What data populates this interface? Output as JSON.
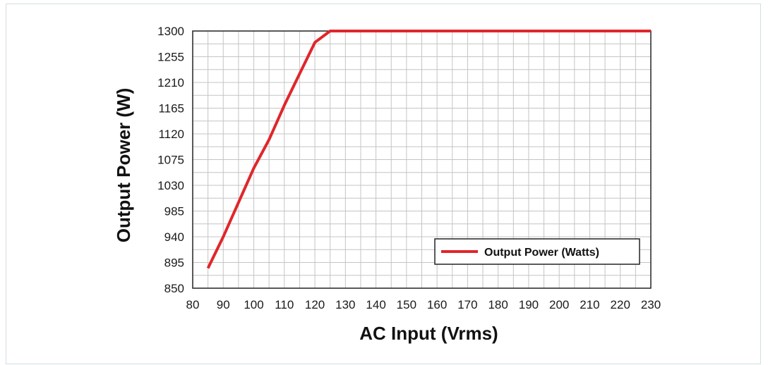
{
  "chart_data": {
    "type": "line",
    "title": "",
    "xlabel": "AC Input (Vrms)",
    "ylabel": "Output Power (W)",
    "xlim": [
      80,
      230
    ],
    "ylim": [
      850,
      1300
    ],
    "x_ticks": [
      80,
      90,
      100,
      110,
      120,
      130,
      140,
      150,
      160,
      170,
      180,
      190,
      200,
      210,
      220,
      230
    ],
    "x_tick_labels": [
      "80",
      "90",
      "100",
      "110",
      "120",
      "130",
      "140",
      "150",
      "160",
      "170",
      "180",
      "190",
      "200",
      "210",
      "220",
      "230"
    ],
    "y_ticks": [
      850,
      895,
      940,
      985,
      1030,
      1075,
      1120,
      1165,
      1210,
      1255,
      1300
    ],
    "y_tick_labels": [
      "850",
      "895",
      "940",
      "985",
      "1030",
      "1075",
      "1120",
      "1165",
      "1210",
      "1255",
      "1300"
    ],
    "grid": true,
    "legend_position": "bottom-right",
    "series": [
      {
        "name": "Output Power (Watts)",
        "color": "#e0262b",
        "x": [
          85,
          90,
          95,
          100,
          105,
          110,
          115,
          120,
          125,
          130,
          140,
          150,
          160,
          170,
          180,
          190,
          200,
          210,
          220,
          230
        ],
        "y": [
          885,
          940,
          1000,
          1060,
          1110,
          1170,
          1225,
          1280,
          1300,
          1300,
          1300,
          1300,
          1300,
          1300,
          1300,
          1300,
          1300,
          1300,
          1300,
          1300
        ]
      }
    ]
  }
}
